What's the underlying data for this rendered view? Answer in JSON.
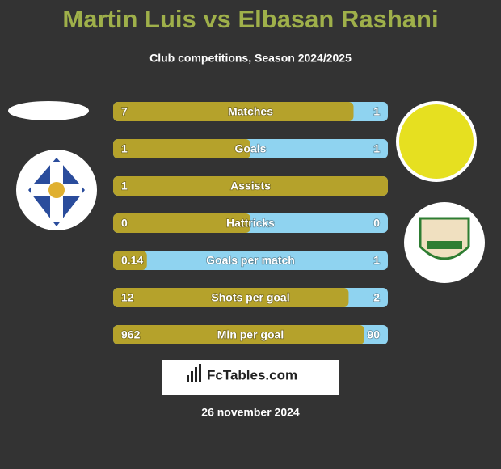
{
  "title": "Martin Luis vs Elbasan Rashani",
  "subtitle": "Club competitions, Season 2024/2025",
  "rows": [
    {
      "label": "Matches",
      "left": 7,
      "right": 1
    },
    {
      "label": "Goals",
      "left": 1,
      "right": 1
    },
    {
      "label": "Assists",
      "left": 1,
      "right": null
    },
    {
      "label": "Hattricks",
      "left": 0,
      "right": 0
    },
    {
      "label": "Goals per match",
      "left": 0.14,
      "right": 1
    },
    {
      "label": "Shots per goal",
      "left": 12,
      "right": 2
    },
    {
      "label": "Min per goal",
      "left": 962,
      "right": 90
    }
  ],
  "brand": "FcTables.com",
  "date": "26 november 2024"
}
